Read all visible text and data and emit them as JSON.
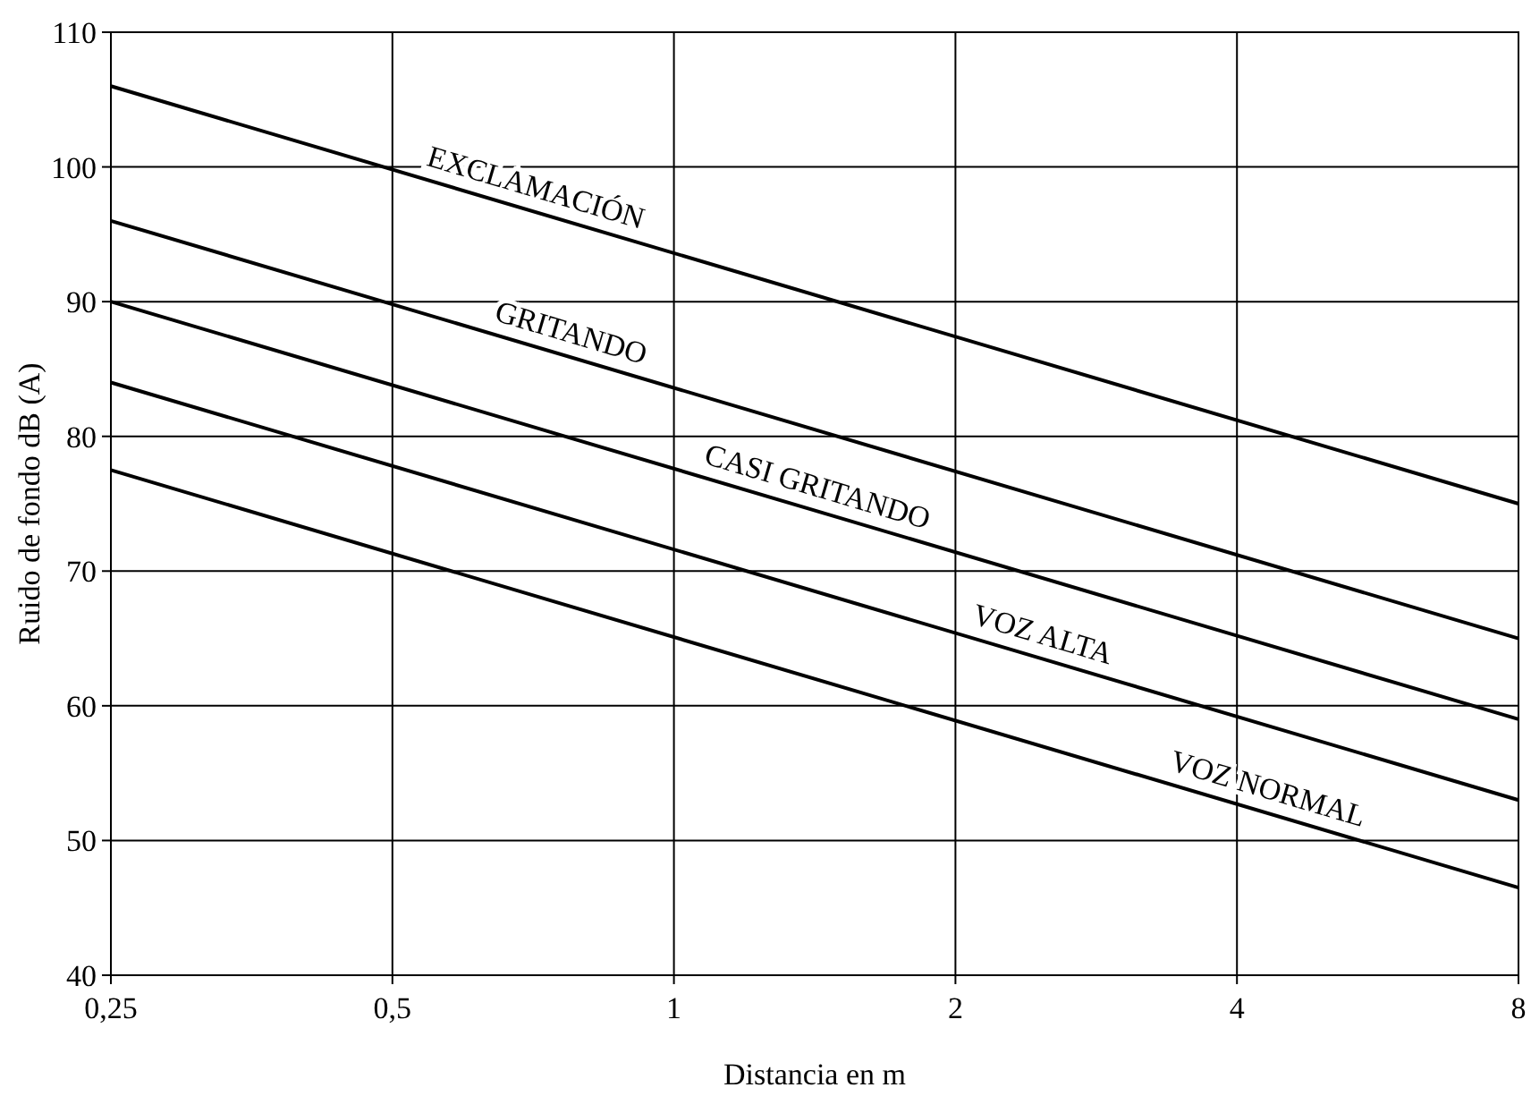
{
  "chart_data": {
    "type": "line",
    "xlabel": "Distancia en m",
    "ylabel": "Ruido de fondo dB (A)",
    "log": "x",
    "x": [
      0.25,
      8
    ],
    "series": [
      {
        "name": "EXCLAMACIÓN",
        "color": "#000000",
        "values": [
          106,
          75
        ]
      },
      {
        "name": "GRITANDO",
        "color": "#000000",
        "values": [
          96,
          65
        ]
      },
      {
        "name": "CASI GRITANDO",
        "color": "#000000",
        "values": [
          90,
          59
        ]
      },
      {
        "name": "VOZ ALTA",
        "color": "#000000",
        "values": [
          84,
          53
        ]
      },
      {
        "name": "VOZ NORMAL",
        "color": "#000000",
        "values": [
          77.5,
          46.5
        ]
      }
    ],
    "xlim": [
      0.25,
      8
    ],
    "xticks": [
      {
        "value": 0.25,
        "label": "0,25"
      },
      {
        "value": 0.5,
        "label": "0,5"
      },
      1,
      2,
      4,
      8
    ],
    "ylim": [
      40,
      110
    ],
    "yticks": [
      40,
      50,
      60,
      70,
      80,
      90,
      100,
      110
    ],
    "grid": true,
    "marker": "none",
    "line_style": "solid"
  }
}
